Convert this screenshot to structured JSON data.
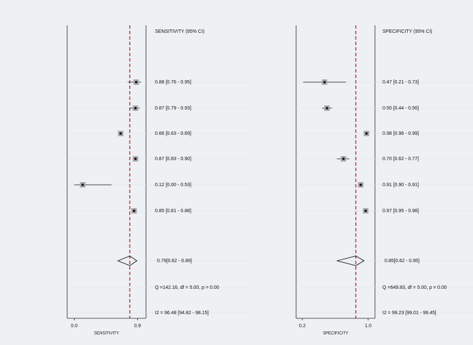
{
  "chart_data": [
    {
      "type": "forest",
      "header": "SENSITIVITY (95% CI)",
      "xlabel": "SENSITIVITY",
      "xlim": [
        -0.1,
        1.02
      ],
      "xticks": [
        {
          "value": 0,
          "label": "0.0"
        },
        0.9
      ],
      "estimates": [
        0.88,
        0.87,
        0.66,
        0.87,
        0.12,
        0.85
      ],
      "lower": [
        0.76,
        0.79,
        0.63,
        0.83,
        0.0,
        0.81
      ],
      "upper": [
        0.95,
        0.93,
        0.69,
        0.9,
        0.53,
        0.88
      ],
      "ci_labels": [
        "0.88 [0.76 - 0.95]",
        "0.87 [0.79 - 0.93]",
        "0.66 [0.63 - 0.69]",
        "0.87 [0.83 - 0.90]",
        "0.12 [0.00 - 0.53]",
        "0.85 [0.81 - 0.88]"
      ],
      "summary": {
        "estimate": 0.79,
        "lower": 0.62,
        "upper": 0.89,
        "label": "0.79[0.62 - 0.89]"
      },
      "heterogeneity": "Q =142.16, df = 5.00, p =  0.00",
      "inconsistency": "I2 = 96.48 [94.82 - 98.15]",
      "reference_color": "#c8202a"
    },
    {
      "type": "forest",
      "header": "SPECIFICITY (95% CI)",
      "xlabel": "SPECIFICITY",
      "xlim": [
        0.125,
        1.083
      ],
      "xticks": [
        0.2,
        {
          "value": 1,
          "label": "1.0"
        }
      ],
      "estimates": [
        0.47,
        0.5,
        0.98,
        0.7,
        0.91,
        0.97
      ],
      "lower": [
        0.21,
        0.44,
        0.96,
        0.62,
        0.9,
        0.95
      ],
      "upper": [
        0.73,
        0.56,
        0.99,
        0.77,
        0.91,
        0.98
      ],
      "ci_labels": [
        "0.47 [0.21 - 0.73]",
        "0.50 [0.44 - 0.56]",
        "0.98 [0.96 - 0.99]",
        "0.70 [0.62 - 0.77]",
        "0.91 [0.90 - 0.91]",
        "0.97 [0.95 - 0.98]"
      ],
      "summary": {
        "estimate": 0.85,
        "lower": 0.62,
        "upper": 0.95,
        "label": "0.85[0.62 - 0.95]"
      },
      "heterogeneity": "Q =649.83, df = 5.00, p =  0.00",
      "inconsistency": "I2 = 99.23 [99.01 - 99.45]",
      "reference_color": "#c8202a"
    }
  ]
}
